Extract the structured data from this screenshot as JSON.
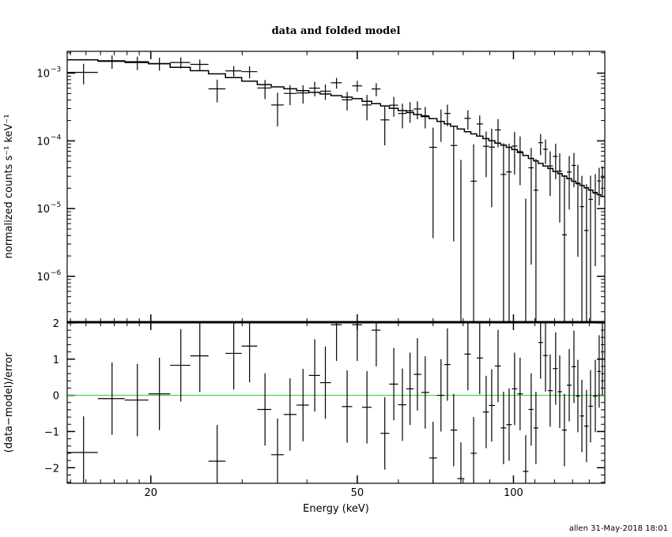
{
  "chart_data": {
    "type": "scatter",
    "title": "data and folded model",
    "footer": "allen 31-May-2018 18:01",
    "colors": {
      "data": "#000000",
      "model": "#000000",
      "zero_line": "#22cc22"
    },
    "top_panel": {
      "ylabel": "normalized counts s⁻¹ keV⁻¹",
      "yscale": "log",
      "ylim": [
        2.1e-07,
        0.0021
      ],
      "yticks": [
        {
          "value": 0.001,
          "label": "10",
          "exp": "−3"
        },
        {
          "value": 0.0001,
          "label": "10",
          "exp": "−4"
        },
        {
          "value": 1e-05,
          "label": "10",
          "exp": "−5"
        },
        {
          "value": 1e-06,
          "label": "10",
          "exp": "−6"
        }
      ],
      "model_knots_keV": [
        14,
        20,
        26.5,
        34,
        50,
        70.5,
        100,
        150
      ],
      "model_knots_rate": [
        0.0016,
        0.00145,
        0.001,
        0.00065,
        0.00042,
        0.00021,
        7.6e-05,
        1.45e-05
      ],
      "frac_err_bands": [
        {
          "max_keV": 30,
          "frac": 0.22
        },
        {
          "max_keV": 50,
          "frac": 0.28
        },
        {
          "max_keV": 70,
          "frac": 0.36
        },
        {
          "max_keV": 90,
          "frac": 0.5
        },
        {
          "max_keV": 120,
          "frac": 0.7
        },
        {
          "max_keV": 200,
          "frac": 0.9
        }
      ]
    },
    "bottom_panel": {
      "ylabel": "(data−model)/error",
      "ylim": [
        -2.43,
        2.02
      ],
      "yticks": [
        {
          "value": 2,
          "label": "2"
        },
        {
          "value": 1,
          "label": "1"
        },
        {
          "value": 0,
          "label": "0"
        },
        {
          "value": -1,
          "label": "−1"
        },
        {
          "value": -2,
          "label": "−2"
        }
      ]
    },
    "xlabel": "Energy (keV)",
    "xscale": "log",
    "xlim": [
      13.8,
      150
    ],
    "xticks": [
      {
        "value": 20,
        "label": "20"
      },
      {
        "value": 50,
        "label": "50"
      },
      {
        "value": 100,
        "label": "100"
      }
    ],
    "energy_keV": [
      14.84,
      16.84,
      18.84,
      20.78,
      22.85,
      24.86,
      26.85,
      28.9,
      31.0,
      33.2,
      35.1,
      37.1,
      39.3,
      41.4,
      43.4,
      45.6,
      47.8,
      50.0,
      52.2,
      54.4,
      56.5,
      58.8,
      61.1,
      63.2,
      65.3,
      67.6,
      70.0,
      72.5,
      74.6,
      76.7,
      79.2,
      81.7,
      83.8,
      86.1,
      88.6,
      90.8,
      93.4,
      95.7,
      98.1,
      100.5,
      103.0,
      105.6,
      108.2,
      110.5,
      112.8,
      115.3,
      117.7,
      120.6,
      122.8,
      125.4,
      128.1,
      130.8,
      133.1,
      135.5,
      138.3,
      140.8,
      143.8,
      146.3,
      148.4
    ],
    "residual": [
      -1.58,
      -0.09,
      -0.13,
      0.04,
      0.83,
      1.09,
      -1.82,
      1.16,
      1.36,
      -0.39,
      -1.64,
      -0.53,
      -0.27,
      0.55,
      0.35,
      1.95,
      -0.31,
      1.95,
      -0.33,
      1.8,
      -1.05,
      0.31,
      -0.26,
      0.18,
      0.58,
      0.08,
      -1.73,
      0.0,
      0.85,
      -0.96,
      -2.3,
      1.14,
      -1.6,
      1.03,
      -0.46,
      -0.28,
      0.81,
      -0.9,
      -0.81,
      0.18,
      0.04,
      -2.1,
      -0.39,
      -0.9,
      1.46,
      1.1,
      0.13,
      0.74,
      0.1,
      -0.96,
      0.28,
      0.79,
      -0.02,
      -0.57,
      -0.85,
      -0.3,
      -0.02,
      0.66,
      1.0
    ],
    "residual_err": 1.0
  }
}
